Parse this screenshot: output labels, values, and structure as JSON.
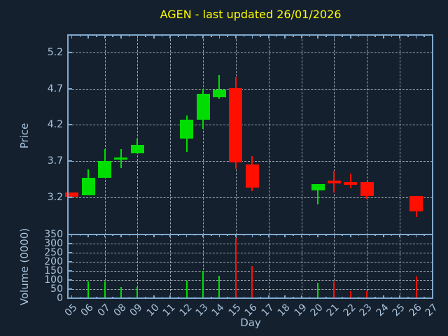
{
  "chart_data": {
    "type": "candlestick",
    "title": "AGEN - last updated 26/01/2026",
    "xlabel": "Day",
    "legend": null,
    "grid": true,
    "colors": {
      "background": "#15202e",
      "spine": "#7fa9cf",
      "tick_label": "#a9c3dc",
      "grid_line": "#b9c0c7",
      "title": "#ffff00",
      "up": "#00dd00",
      "down": "#ff0f00"
    },
    "x_axis": {
      "tick_labels": [
        "05",
        "06",
        "07",
        "08",
        "09",
        "10",
        "11",
        "12",
        "13",
        "14",
        "15",
        "16",
        "17",
        "18",
        "19",
        "20",
        "21",
        "22",
        "23",
        "24",
        "25",
        "26",
        "27"
      ],
      "tick_days": [
        5,
        6,
        7,
        8,
        9,
        10,
        11,
        12,
        13,
        14,
        15,
        16,
        17,
        18,
        19,
        20,
        21,
        22,
        23,
        24,
        25,
        26,
        27
      ],
      "grid_days": [
        7,
        9,
        11,
        13,
        15,
        17,
        19,
        21,
        23,
        25
      ],
      "range": [
        4.8,
        27.0
      ]
    },
    "price_panel": {
      "ylabel": "Price",
      "ticks": [
        3.2,
        3.7,
        4.2,
        4.7,
        5.2
      ],
      "range": [
        2.684,
        5.431
      ]
    },
    "volume_panel": {
      "ylabel": "Volume (0000)",
      "ticks": [
        0,
        50,
        100,
        150,
        200,
        250,
        300,
        350
      ],
      "range": [
        0,
        350
      ]
    },
    "series": [
      {
        "day": 5,
        "open": 3.26,
        "high": 3.26,
        "low": 3.21,
        "close": 3.21,
        "volume": 0,
        "direction": "down"
      },
      {
        "day": 6,
        "open": 3.23,
        "high": 3.58,
        "low": 3.23,
        "close": 3.47,
        "volume": 92,
        "direction": "up"
      },
      {
        "day": 7,
        "open": 3.47,
        "high": 3.86,
        "low": 3.47,
        "close": 3.7,
        "volume": 92,
        "direction": "up"
      },
      {
        "day": 8,
        "open": 3.75,
        "high": 3.86,
        "low": 3.6,
        "close": 3.75,
        "volume": 63,
        "direction": "up"
      },
      {
        "day": 9,
        "open": 3.81,
        "high": 4.01,
        "low": 3.81,
        "close": 3.92,
        "volume": 60,
        "direction": "up"
      },
      {
        "day": 12,
        "open": 4.01,
        "high": 4.33,
        "low": 3.83,
        "close": 4.27,
        "volume": 95,
        "direction": "up"
      },
      {
        "day": 13,
        "open": 4.27,
        "high": 4.7,
        "low": 4.14,
        "close": 4.63,
        "volume": 150,
        "direction": "up"
      },
      {
        "day": 14,
        "open": 4.58,
        "high": 4.89,
        "low": 4.56,
        "close": 4.69,
        "volume": 125,
        "direction": "up"
      },
      {
        "day": 15,
        "open": 4.71,
        "high": 4.86,
        "low": 3.59,
        "close": 3.68,
        "volume": 330,
        "direction": "down"
      },
      {
        "day": 16,
        "open": 3.65,
        "high": 3.77,
        "low": 3.28,
        "close": 3.33,
        "volume": 178,
        "direction": "down"
      },
      {
        "day": 20,
        "open": 3.29,
        "high": 3.38,
        "low": 3.1,
        "close": 3.38,
        "volume": 83,
        "direction": "up"
      },
      {
        "day": 21,
        "open": 3.43,
        "high": 3.56,
        "low": 3.26,
        "close": 3.39,
        "volume": 94,
        "direction": "down"
      },
      {
        "day": 22,
        "open": 3.41,
        "high": 3.53,
        "low": 3.32,
        "close": 3.37,
        "volume": 40,
        "direction": "down"
      },
      {
        "day": 23,
        "open": 3.41,
        "high": 3.41,
        "low": 3.18,
        "close": 3.22,
        "volume": 39,
        "direction": "down"
      },
      {
        "day": 26,
        "open": 3.22,
        "high": 3.22,
        "low": 2.93,
        "close": 3.0,
        "volume": 120,
        "direction": "down"
      }
    ]
  }
}
